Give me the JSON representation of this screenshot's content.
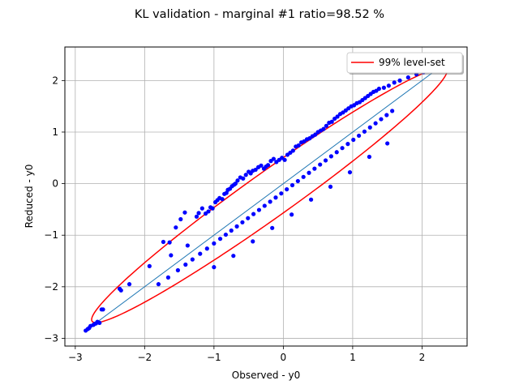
{
  "chart_data": {
    "type": "scatter",
    "title": "KL validation - marginal #1 ratio=98.52 %",
    "xlabel": "Observed - y0",
    "ylabel": "Reduced - y0",
    "xlim": [
      -3.15,
      2.65
    ],
    "ylim": [
      -3.15,
      2.65
    ],
    "xticks": [
      -3,
      -2,
      -1,
      0,
      1,
      2
    ],
    "yticks": [
      -3,
      -2,
      -1,
      0,
      1,
      2
    ],
    "xtick_labels": [
      "−3",
      "−2",
      "−1",
      "0",
      "1",
      "2"
    ],
    "ytick_labels": [
      "−3",
      "−2",
      "−1",
      "0",
      "1",
      "2"
    ],
    "grid": true,
    "legend": {
      "placement": "top-right",
      "entries": [
        {
          "label": "99% level-set",
          "color": "#ff0000"
        }
      ]
    },
    "series": [
      {
        "kind": "points",
        "color": "#0000ff",
        "x": [
          -2.85,
          -2.82,
          -2.8,
          -2.78,
          -2.74,
          -2.72,
          -2.7,
          -2.68,
          -2.65,
          -2.62,
          -2.6,
          -2.36,
          -2.34,
          -2.22,
          -1.93,
          -1.73,
          -1.64,
          -1.62,
          -1.55,
          -1.48,
          -1.42,
          -1.38,
          -1.25,
          -1.22,
          -1.17,
          -1.12,
          -1.08,
          -1.05,
          -1.02,
          -0.98,
          -0.95,
          -0.92,
          -0.88,
          -0.85,
          -0.82,
          -0.8,
          -0.77,
          -0.74,
          -0.71,
          -0.69,
          -0.66,
          -0.62,
          -0.58,
          -0.54,
          -0.5,
          -0.47,
          -0.44,
          -0.4,
          -0.36,
          -0.32,
          -0.28,
          -0.25,
          -0.22,
          -0.18,
          -0.14,
          -0.1,
          -0.06,
          -0.02,
          0.02,
          0.06,
          0.1,
          0.14,
          0.18,
          0.22,
          0.26,
          0.3,
          0.34,
          0.38,
          0.42,
          0.46,
          0.5,
          0.54,
          0.58,
          0.62,
          0.66,
          0.7,
          0.74,
          0.78,
          0.82,
          0.86,
          0.9,
          0.94,
          0.98,
          1.02,
          1.06,
          1.1,
          1.14,
          1.18,
          1.22,
          1.26,
          1.3,
          1.34,
          1.38,
          1.45,
          1.52,
          1.6,
          1.68,
          1.8,
          1.92,
          2.02,
          -1.8,
          -1.66,
          -1.52,
          -1.41,
          -1.31,
          -1.2,
          -1.1,
          -1.0,
          -0.91,
          -0.83,
          -0.75,
          -0.67,
          -0.59,
          -0.51,
          -0.43,
          -0.35,
          -0.27,
          -0.19,
          -0.11,
          -0.03,
          0.05,
          0.13,
          0.21,
          0.29,
          0.37,
          0.45,
          0.53,
          0.61,
          0.69,
          0.77,
          0.85,
          0.93,
          1.01,
          1.09,
          1.17,
          1.25,
          1.33,
          1.41,
          1.49,
          1.57,
          -1.0,
          -0.72,
          -0.44,
          -0.16,
          0.12,
          0.4,
          0.68,
          0.96,
          1.24,
          1.5
        ],
        "y": [
          -2.85,
          -2.82,
          -2.8,
          -2.76,
          -2.74,
          -2.72,
          -2.71,
          -2.68,
          -2.7,
          -2.44,
          -2.44,
          -2.04,
          -2.07,
          -1.95,
          -1.6,
          -1.13,
          -1.14,
          -1.39,
          -0.85,
          -0.69,
          -0.56,
          -1.2,
          -0.64,
          -0.57,
          -0.48,
          -0.58,
          -0.54,
          -0.46,
          -0.48,
          -0.36,
          -0.32,
          -0.28,
          -0.3,
          -0.2,
          -0.18,
          -0.12,
          -0.1,
          -0.05,
          -0.02,
          0.0,
          0.06,
          0.12,
          0.1,
          0.17,
          0.23,
          0.2,
          0.25,
          0.27,
          0.32,
          0.35,
          0.29,
          0.33,
          0.36,
          0.44,
          0.48,
          0.42,
          0.46,
          0.5,
          0.46,
          0.56,
          0.6,
          0.64,
          0.72,
          0.74,
          0.8,
          0.82,
          0.86,
          0.88,
          0.92,
          0.95,
          1.0,
          1.03,
          1.06,
          1.12,
          1.18,
          1.2,
          1.26,
          1.3,
          1.35,
          1.38,
          1.42,
          1.46,
          1.5,
          1.52,
          1.56,
          1.58,
          1.62,
          1.66,
          1.7,
          1.74,
          1.78,
          1.8,
          1.84,
          1.86,
          1.9,
          1.96,
          2.0,
          2.06,
          2.12,
          2.16,
          -1.95,
          -1.82,
          -1.68,
          -1.57,
          -1.47,
          -1.36,
          -1.26,
          -1.16,
          -1.07,
          -0.99,
          -0.91,
          -0.83,
          -0.75,
          -0.67,
          -0.59,
          -0.51,
          -0.43,
          -0.35,
          -0.27,
          -0.19,
          -0.11,
          -0.03,
          0.05,
          0.13,
          0.21,
          0.29,
          0.37,
          0.45,
          0.53,
          0.61,
          0.69,
          0.77,
          0.85,
          0.93,
          1.01,
          1.09,
          1.17,
          1.25,
          1.33,
          1.41,
          -1.62,
          -1.4,
          -1.12,
          -0.86,
          -0.6,
          -0.31,
          -0.06,
          0.22,
          0.52,
          0.78
        ]
      },
      {
        "kind": "diagonal",
        "color": "#1f77b4",
        "x": [
          -2.85,
          2.4
        ],
        "y": [
          -2.85,
          2.4
        ]
      },
      {
        "kind": "ellipse",
        "name": "99% level-set",
        "color": "#ff0000",
        "center": [
          -0.2,
          -0.22
        ],
        "major_half": [
          2.55,
          2.46
        ],
        "minor_half": [
          0.27,
          -0.28
        ]
      }
    ]
  }
}
